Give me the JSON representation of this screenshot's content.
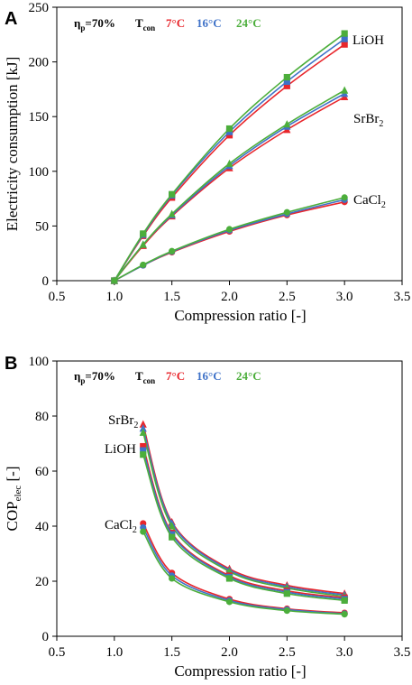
{
  "colors": {
    "t7": "#e8262c",
    "t16": "#3f72c8",
    "t24": "#4cae3b"
  },
  "chart_data": [
    {
      "type": "line",
      "panel": "A",
      "xlabel": "Compression ratio [-]",
      "ylabel": "Electricity consumption [kJ]",
      "xlim": [
        0.5,
        3.5
      ],
      "ylim": [
        0,
        250
      ],
      "xticks": [
        "0.5",
        "1.0",
        "1.5",
        "2.0",
        "2.5",
        "3.0",
        "3.5"
      ],
      "yticks": [
        "0",
        "50",
        "100",
        "150",
        "200",
        "250"
      ],
      "legend": {
        "efficiency_main": "η",
        "efficiency_sub": "p",
        "efficiency_value": "=70%",
        "tcon_main": "T",
        "tcon_sub": "con",
        "t7": "7°C",
        "t16": "16°C",
        "t24": "24°C"
      },
      "groups": [
        {
          "label_main": "LiOH",
          "label_sub": "",
          "marker": "square",
          "x": [
            1.0,
            1.25,
            1.5,
            2.0,
            2.5,
            3.0
          ],
          "series": [
            {
              "temp": "t7",
              "values": [
                0,
                41,
                76,
                133,
                178,
                216
              ]
            },
            {
              "temp": "t16",
              "values": [
                0,
                42,
                78,
                136,
                182,
                221
              ]
            },
            {
              "temp": "t24",
              "values": [
                0,
                43,
                79,
                139,
                186,
                226
              ]
            }
          ]
        },
        {
          "label_main": "SrBr",
          "label_sub": "2",
          "marker": "triangle",
          "x": [
            1.0,
            1.25,
            1.5,
            2.0,
            2.5,
            3.0
          ],
          "series": [
            {
              "temp": "t7",
              "values": [
                0,
                32,
                59,
                103,
                138,
                168
              ]
            },
            {
              "temp": "t16",
              "values": [
                0,
                33,
                60,
                105,
                141,
                171
              ]
            },
            {
              "temp": "t24",
              "values": [
                0,
                33,
                61,
                107,
                143,
                174
              ]
            }
          ]
        },
        {
          "label_main": "CaCl",
          "label_sub": "2",
          "marker": "circle",
          "x": [
            1.0,
            1.25,
            1.5,
            2.0,
            2.5,
            3.0
          ],
          "series": [
            {
              "temp": "t7",
              "values": [
                0,
                14,
                26,
                45,
                60,
                72
              ]
            },
            {
              "temp": "t16",
              "values": [
                0,
                14,
                26.5,
                46,
                61,
                74
              ]
            },
            {
              "temp": "t24",
              "values": [
                0,
                14.5,
                27,
                47,
                62.5,
                76
              ]
            }
          ]
        }
      ]
    },
    {
      "type": "line",
      "panel": "B",
      "xlabel": "Compression ratio [-]",
      "ylabel_main": "COP",
      "ylabel_sub": "elec",
      "ylabel_unit": " [-]",
      "xlim": [
        0.5,
        3.5
      ],
      "ylim": [
        0,
        100
      ],
      "xticks": [
        "0.5",
        "1.0",
        "1.5",
        "2.0",
        "2.5",
        "3.0",
        "3.5"
      ],
      "yticks": [
        "0",
        "20",
        "40",
        "60",
        "80",
        "100"
      ],
      "legend": {
        "efficiency_main": "η",
        "efficiency_sub": "p",
        "efficiency_value": "=70%",
        "tcon_main": "T",
        "tcon_sub": "con",
        "t7": "7°C",
        "t16": "16°C",
        "t24": "24°C"
      },
      "groups": [
        {
          "label_main": "SrBr",
          "label_sub": "2",
          "marker": "triangle",
          "x": [
            1.25,
            1.5,
            2.0,
            2.5,
            3.0
          ],
          "series": [
            {
              "temp": "t7",
              "values": [
                77,
                41.5,
                24.5,
                18.5,
                15.5
              ]
            },
            {
              "temp": "t16",
              "values": [
                75.5,
                41,
                24,
                18,
                15
              ]
            },
            {
              "temp": "t24",
              "values": [
                74,
                40,
                23.5,
                17.5,
                14.5
              ]
            }
          ]
        },
        {
          "label_main": "LiOH",
          "label_sub": "",
          "marker": "square",
          "x": [
            1.25,
            1.5,
            2.0,
            2.5,
            3.0
          ],
          "series": [
            {
              "temp": "t7",
              "values": [
                69,
                37.5,
                22,
                16.5,
                14
              ]
            },
            {
              "temp": "t16",
              "values": [
                67.5,
                37,
                21.5,
                16,
                13.5
              ]
            },
            {
              "temp": "t24",
              "values": [
                66,
                36,
                21,
                15.5,
                13
              ]
            }
          ]
        },
        {
          "label_main": "CaCl",
          "label_sub": "2",
          "marker": "circle",
          "x": [
            1.25,
            1.5,
            2.0,
            2.5,
            3.0
          ],
          "series": [
            {
              "temp": "t7",
              "values": [
                41,
                23,
                13.5,
                10,
                8.5
              ]
            },
            {
              "temp": "t16",
              "values": [
                39.5,
                22,
                13,
                9.7,
                8.2
              ]
            },
            {
              "temp": "t24",
              "values": [
                38,
                21,
                12.5,
                9.3,
                8
              ]
            }
          ]
        }
      ]
    }
  ]
}
